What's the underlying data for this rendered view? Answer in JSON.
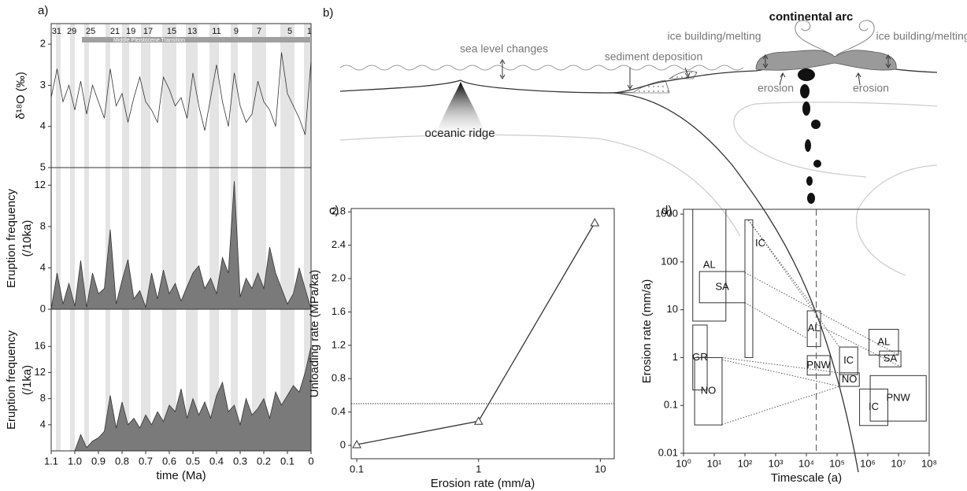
{
  "chart_data": [
    {
      "type": "line",
      "panel_label": "a)",
      "color": "#333333",
      "ylabel": "δ¹⁸O (‰)",
      "x": [
        1.1,
        1.075,
        1.05,
        1.025,
        1.0,
        0.975,
        0.95,
        0.925,
        0.9,
        0.875,
        0.85,
        0.825,
        0.8,
        0.775,
        0.75,
        0.725,
        0.7,
        0.675,
        0.65,
        0.625,
        0.6,
        0.575,
        0.55,
        0.525,
        0.5,
        0.475,
        0.45,
        0.425,
        0.4,
        0.375,
        0.35,
        0.325,
        0.3,
        0.275,
        0.25,
        0.225,
        0.2,
        0.175,
        0.15,
        0.125,
        0.1,
        0.075,
        0.05,
        0.025,
        0
      ],
      "values": [
        3.3,
        2.6,
        3.4,
        3.0,
        3.6,
        2.9,
        3.7,
        3.0,
        3.4,
        3.8,
        2.6,
        3.5,
        3.2,
        3.9,
        3.3,
        2.8,
        3.4,
        3.6,
        3.9,
        2.8,
        3.1,
        3.5,
        3.3,
        3.8,
        2.7,
        3.5,
        4.1,
        3.3,
        2.5,
        3.4,
        4.0,
        2.7,
        3.5,
        3.9,
        3.7,
        2.9,
        3.4,
        3.6,
        4.0,
        2.2,
        3.2,
        3.5,
        3.8,
        4.2,
        2.4
      ],
      "xlim": [
        1.1,
        0
      ],
      "ylim": [
        5,
        1.5
      ],
      "yticks": [
        2,
        3,
        4,
        5
      ],
      "bands": [
        [
          1.08,
          1.06
        ],
        [
          1.02,
          1.0
        ],
        [
          0.96,
          0.94
        ],
        [
          0.87,
          0.85
        ],
        [
          0.8,
          0.77
        ],
        [
          0.72,
          0.68
        ],
        [
          0.63,
          0.57
        ],
        [
          0.53,
          0.48
        ],
        [
          0.43,
          0.39
        ],
        [
          0.34,
          0.31
        ],
        [
          0.25,
          0.19
        ],
        [
          0.13,
          0.07
        ],
        [
          0.03,
          0.0
        ]
      ],
      "band_color": "#e4e4e4",
      "stage_labels": [
        "31",
        "29",
        "25",
        "21",
        "19",
        "17",
        "15",
        "13",
        "11",
        "9",
        "7",
        "5",
        "1"
      ],
      "stage_x": [
        1.077,
        1.013,
        0.933,
        0.83,
        0.763,
        0.69,
        0.59,
        0.503,
        0.4,
        0.317,
        0.22,
        0.09,
        0.007
      ],
      "transition_label": "Middle Pleistocene Transition",
      "transition_range": [
        0.97,
        0
      ],
      "transition_color": "#a0a0a0"
    },
    {
      "type": "area",
      "color": "#7a7a7a",
      "ylabel": [
        "Eruption frequency",
        "(/10ka)"
      ],
      "x": [
        1.1,
        1.075,
        1.05,
        1.025,
        1.0,
        0.975,
        0.95,
        0.925,
        0.9,
        0.875,
        0.85,
        0.825,
        0.8,
        0.775,
        0.75,
        0.725,
        0.7,
        0.675,
        0.65,
        0.625,
        0.6,
        0.575,
        0.55,
        0.525,
        0.5,
        0.475,
        0.45,
        0.425,
        0.4,
        0.375,
        0.35,
        0.325,
        0.3,
        0.275,
        0.25,
        0.225,
        0.2,
        0.175,
        0.15,
        0.125,
        0.1,
        0.075,
        0.05,
        0.025,
        0
      ],
      "values": [
        0,
        3.5,
        0.5,
        2.5,
        0.3,
        4.7,
        0.2,
        3.5,
        1.5,
        2.0,
        7.7,
        0.5,
        2.8,
        4.8,
        1.0,
        1.8,
        0.2,
        3.5,
        1.0,
        3.8,
        1.5,
        2.5,
        0.8,
        2.2,
        3.5,
        4.2,
        2.0,
        3.0,
        1.5,
        5.0,
        3.5,
        12.4,
        1.2,
        3.0,
        2.0,
        3.5,
        2.0,
        6.0,
        3.5,
        2.0,
        0.5,
        1.5,
        4.0,
        2.0,
        0
      ],
      "xlim": [
        1.1,
        0
      ],
      "ylim": [
        0,
        13.7
      ],
      "yticks": [
        0,
        4,
        8,
        12
      ]
    },
    {
      "type": "area",
      "color": "#7a7a7a",
      "ylabel": [
        "Eruption frequency",
        "(/1ka)"
      ],
      "xlabel": "time (Ma)",
      "x": [
        1.1,
        1.075,
        1.05,
        1.025,
        1.0,
        0.975,
        0.95,
        0.925,
        0.9,
        0.875,
        0.85,
        0.825,
        0.8,
        0.775,
        0.75,
        0.725,
        0.7,
        0.675,
        0.65,
        0.625,
        0.6,
        0.575,
        0.55,
        0.525,
        0.5,
        0.475,
        0.45,
        0.425,
        0.4,
        0.375,
        0.35,
        0.325,
        0.3,
        0.275,
        0.25,
        0.225,
        0.2,
        0.175,
        0.15,
        0.125,
        0.1,
        0.075,
        0.05,
        0.025,
        0
      ],
      "values": [
        0,
        0,
        0,
        0,
        0,
        2.5,
        0.5,
        1.5,
        2.0,
        3.0,
        8.5,
        3.5,
        7.5,
        4.0,
        5.0,
        3.5,
        5.5,
        4.0,
        6.0,
        4.5,
        7.0,
        6.0,
        9.5,
        5.0,
        8.0,
        5.5,
        7.5,
        5.0,
        8.5,
        10.5,
        6.0,
        7.0,
        4.0,
        8.0,
        5.5,
        6.5,
        8.0,
        5.0,
        9.0,
        7.0,
        8.5,
        10.0,
        9.0,
        12.0,
        16.0
      ],
      "xlim": [
        1.1,
        0
      ],
      "ylim": [
        0,
        21.7
      ],
      "yticks": [
        4,
        8,
        12,
        16
      ],
      "xticks": [
        1.1,
        {
          "value": 1,
          "label": "1.0"
        },
        0.9,
        0.8,
        0.7,
        0.6,
        0.5,
        0.4,
        0.3,
        0.2,
        0.1,
        0
      ]
    },
    {
      "type": "line",
      "panel_label": "c)",
      "color": "#333333",
      "marker": "triangle",
      "xlabel": "Erosion rate (mm/a)",
      "ylabel": "Unloading rate (MPa/ka)",
      "x": [
        0.1,
        1,
        9
      ],
      "values": [
        0.01,
        0.29,
        2.67
      ],
      "xlog": true,
      "xlim": [
        0.09,
        13
      ],
      "xticks": [
        0.1,
        1,
        10
      ],
      "ylim": [
        -0.16,
        2.84
      ],
      "yticks": [
        0,
        0.4,
        0.8,
        1.2,
        1.6,
        {
          "value": 2,
          "label": "2.0"
        },
        2.4,
        2.8
      ],
      "hline": 0.5
    },
    {
      "type": "range-box",
      "panel_label": "d)",
      "xlabel": "Timescale (a)",
      "ylabel": "Erosion rate (mm/a)",
      "xlog": true,
      "ylog": true,
      "xlim": [
        1,
        100000000
      ],
      "ylim": [
        0.01,
        1260
      ],
      "xticks": [
        {
          "value": 1,
          "label": "10⁰"
        },
        {
          "value": 10,
          "label": "10¹"
        },
        {
          "value": 100,
          "label": "10²"
        },
        {
          "value": 1000,
          "label": "10³"
        },
        {
          "value": 10000,
          "label": "10⁴"
        },
        {
          "value": 100000,
          "label": "10⁵"
        },
        {
          "value": 1000000,
          "label": "10⁶"
        },
        {
          "value": 10000000,
          "label": "10⁷"
        },
        {
          "value": 100000000,
          "label": "10⁸"
        }
      ],
      "yticks": [
        0.01,
        0.1,
        1,
        10,
        100,
        1000
      ],
      "vline": 21000,
      "boxes": [
        {
          "label": "AL",
          "x": [
            2,
            24
          ],
          "y": [
            5.8,
            1260
          ]
        },
        {
          "label": "SA",
          "x": [
            3.3,
            100
          ],
          "y": [
            14,
            63
          ]
        },
        {
          "label": "GR",
          "x": [
            2,
            5.9
          ],
          "y": [
            0.21,
            4.8
          ]
        },
        {
          "label": "NO",
          "x": [
            2.3,
            18
          ],
          "y": [
            0.039,
            1.0
          ]
        },
        {
          "label": "IC",
          "x": [
            100,
            180
          ],
          "y": [
            1.0,
            760
          ]
        },
        {
          "label": "AL",
          "x": [
            10700,
            29000
          ],
          "y": [
            1.7,
            9.5
          ]
        },
        {
          "label": "PNW",
          "x": [
            10700,
            59000
          ],
          "y": [
            0.43,
            1.1
          ]
        },
        {
          "label": "IC",
          "x": [
            120000,
            470000
          ],
          "y": [
            0.44,
            1.66
          ]
        },
        {
          "label": "NO",
          "x": [
            120000,
            530000
          ],
          "y": [
            0.25,
            0.48
          ]
        },
        {
          "label": "AL",
          "x": [
            1100000,
            10000000
          ],
          "y": [
            1.13,
            3.9
          ]
        },
        {
          "label": "SA",
          "x": [
            2400000,
            12000000
          ],
          "y": [
            0.64,
            1.37
          ]
        },
        {
          "label": "PNW",
          "x": [
            1200000,
            80000000
          ],
          "y": [
            0.047,
            0.42
          ]
        },
        {
          "label": "IC",
          "x": [
            540000,
            4500000
          ],
          "y": [
            0.038,
            0.22
          ]
        }
      ],
      "links": [
        [
          130,
          750,
          21000,
          9.5
        ],
        [
          130,
          750,
          120000,
          1.66
        ],
        [
          100,
          60,
          21000,
          9.5
        ],
        [
          100,
          14,
          10700,
          2.5
        ],
        [
          21000,
          9.5,
          10000000,
          1.13
        ],
        [
          21000,
          5,
          12000000,
          0.64
        ],
        [
          18,
          1.0,
          120000,
          0.48
        ],
        [
          18,
          0.9,
          120000,
          0.25
        ],
        [
          18,
          0.04,
          120000,
          0.25
        ]
      ]
    }
  ],
  "diagram": {
    "label": "b)",
    "arc": "continental arc",
    "ice_left": "ice building/melting",
    "ice_right": "ice building/melting",
    "sea_level": "sea level changes",
    "sediment": "sediment deposition",
    "erosion_left": "erosion",
    "erosion_right": "erosion",
    "ridge": "oceanic ridge"
  }
}
